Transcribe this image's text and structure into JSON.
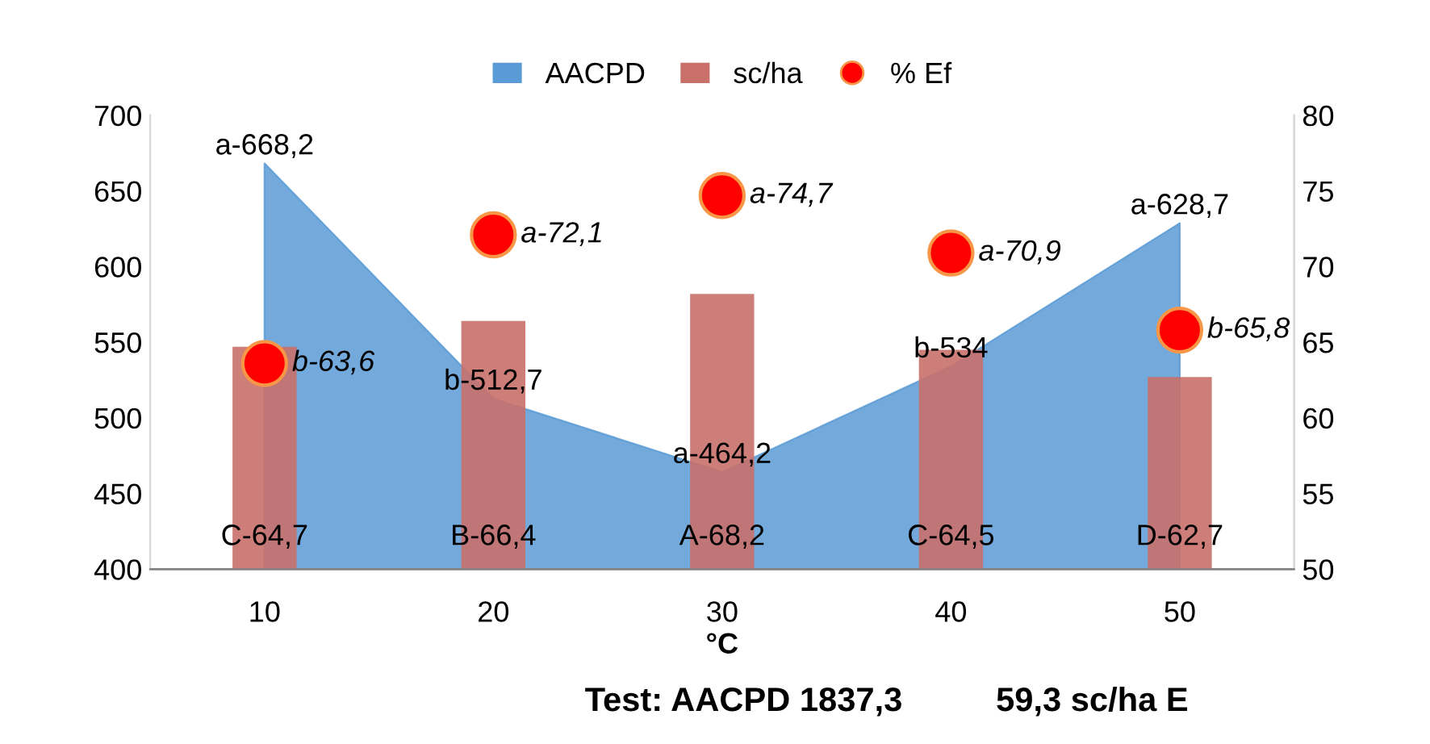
{
  "chart_data": {
    "type": "bar",
    "categories": [
      "10",
      "20",
      "30",
      "40",
      "50"
    ],
    "xlabel": "°C",
    "ylim": [
      400,
      700
    ],
    "yticks": [
      400,
      450,
      500,
      550,
      600,
      650,
      700
    ],
    "y2lim": [
      50,
      80
    ],
    "y2ticks": [
      50,
      55,
      60,
      65,
      70,
      75,
      80
    ],
    "series": [
      {
        "name": "AACPD",
        "type": "area",
        "color": "#5b9bd5",
        "values": [
          668.2,
          512.7,
          464.2,
          534,
          628.7
        ],
        "value_labels": [
          "a-668,2",
          "b-512,7",
          "a-464,2",
          "b-534",
          "a-628,7"
        ]
      },
      {
        "name": "sc/ha",
        "axis": "y2",
        "color": "#c9706a",
        "values": [
          64.7,
          66.4,
          68.2,
          64.5,
          62.7
        ],
        "value_labels": [
          "C-64,7",
          "B-66,4",
          "A-68,2",
          "C-64,5",
          "D-62,7"
        ]
      },
      {
        "name": "% Ef",
        "type": "scatter",
        "axis": "y2",
        "color": "#ff0000",
        "marker": "circle",
        "values": [
          63.6,
          72.1,
          74.7,
          70.9,
          65.8
        ],
        "value_labels": [
          "b-63,6",
          "a-72,1",
          "a-74,7",
          "a-70,9",
          "b-65,8"
        ]
      }
    ],
    "legend": "top",
    "grid": false,
    "annotations": [
      "Test: AACPD 1837,3          59,3 sc/ha E"
    ]
  }
}
